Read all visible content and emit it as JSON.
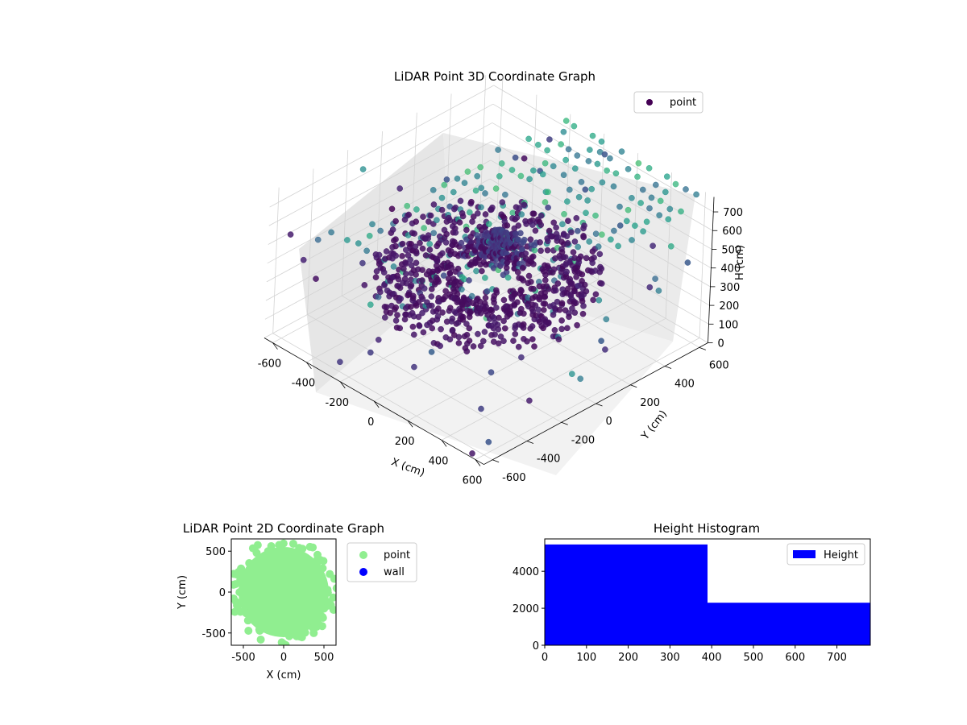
{
  "chart_data": [
    {
      "type": "scatter",
      "projection": "3d",
      "title": "LiDAR Point 3D Coordinate Graph",
      "xlabel": "X (cm)",
      "ylabel": "Y (cm)",
      "zlabel": "H (cm)",
      "xticks": [
        "-600",
        "-400",
        "-200",
        "0",
        "200",
        "400",
        "600"
      ],
      "yticks": [
        "-600",
        "-400",
        "-200",
        "0",
        "200",
        "400",
        "600"
      ],
      "zticks": [
        "0",
        "100",
        "200",
        "300",
        "400",
        "500",
        "600",
        "700"
      ],
      "xlim": [
        -650,
        650
      ],
      "ylim": [
        -650,
        650
      ],
      "zlim": [
        0,
        780
      ],
      "z_inverted": true,
      "colormap": "viridis",
      "grid": true,
      "legend": {
        "position": "top-right",
        "entries": [
          {
            "label": "point",
            "color": "#440154"
          }
        ]
      },
      "description_of_data": "Dense ring-shaped clusters of points at heights of about 250-450 cm around the origin (dark purple), a funnel of points near 600-700 cm, and a sparse grid of lighter-colored ground points near floor level."
    },
    {
      "type": "scatter",
      "title": "LiDAR Point 2D Coordinate Graph",
      "xlabel": "X (cm)",
      "ylabel": "Y (cm)",
      "xticks": [
        "-500",
        "0",
        "500"
      ],
      "yticks": [
        "-500",
        "0",
        "500"
      ],
      "xlim": [
        -650,
        650
      ],
      "ylim": [
        -650,
        650
      ],
      "series": [
        {
          "name": "point",
          "color": "#90ee90",
          "shape": "filled-disc",
          "center": [
            0,
            0
          ],
          "radius": 560
        },
        {
          "name": "wall",
          "color": "#0000ff",
          "points": []
        }
      ],
      "legend": {
        "position": "outside-right",
        "entries": [
          {
            "label": "point",
            "color": "#90ee90"
          },
          {
            "label": "wall",
            "color": "#0000ff"
          }
        ]
      }
    },
    {
      "type": "bar",
      "subtype": "histogram",
      "title": "Height Histogram",
      "xticks": [
        "0",
        "100",
        "200",
        "300",
        "400",
        "500",
        "600",
        "700"
      ],
      "yticks": [
        "0",
        "2000",
        "4000"
      ],
      "xlim": [
        0,
        780
      ],
      "ylim": [
        0,
        5750
      ],
      "bins": [
        {
          "from": 0,
          "to": 390,
          "count": 5450
        },
        {
          "from": 390,
          "to": 780,
          "count": 2300
        }
      ],
      "color": "#0000ff",
      "legend": {
        "position": "top-right",
        "entries": [
          {
            "label": "Height",
            "color": "#0000ff"
          }
        ]
      }
    }
  ]
}
